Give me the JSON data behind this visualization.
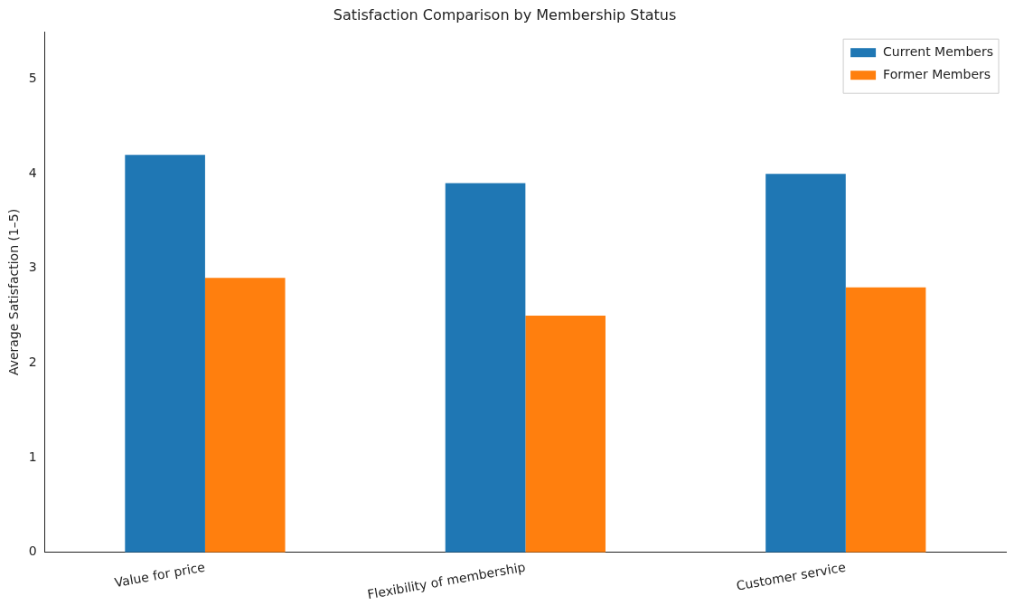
{
  "chart_data": {
    "type": "bar",
    "title": "Satisfaction Comparison by Membership Status",
    "ylabel": "Average Satisfaction (1–5)",
    "categories": [
      "Value for price",
      "Flexibility of membership",
      "Customer service"
    ],
    "series": [
      {
        "name": "Current Members",
        "color": "#1f77b4",
        "values": [
          4.2,
          3.9,
          4.0
        ]
      },
      {
        "name": "Former Members",
        "color": "#ff7f0e",
        "values": [
          2.9,
          2.5,
          2.8
        ]
      }
    ],
    "ylim": [
      0,
      5.5
    ],
    "yticks": [
      0,
      1,
      2,
      3,
      4,
      5
    ],
    "grid": false,
    "legend": "top right"
  }
}
